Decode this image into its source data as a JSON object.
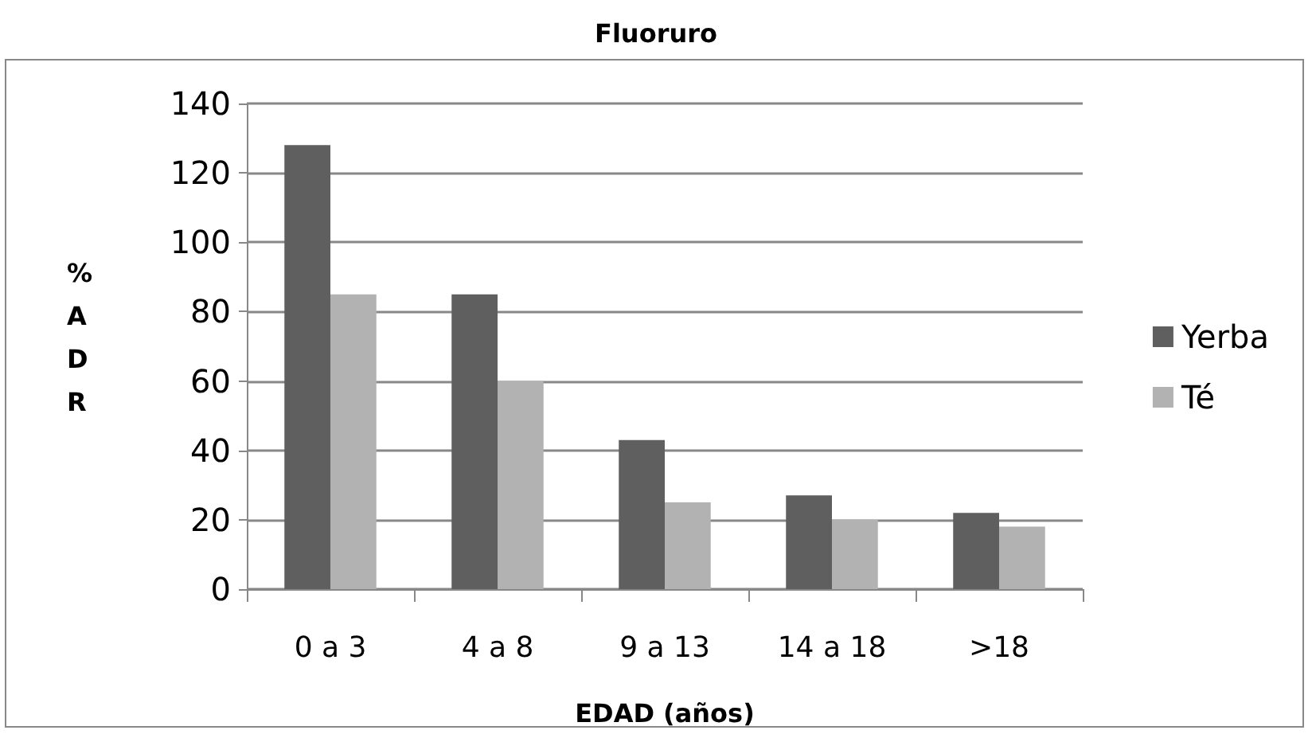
{
  "chart_data": {
    "type": "bar",
    "title": "Fluoruro",
    "xlabel": "EDAD (años)",
    "ylabel": "%ADR",
    "categories": [
      "0 a 3",
      "4 a 8",
      "9 a 13",
      "14 a 18",
      ">18"
    ],
    "series": [
      {
        "name": "Yerba",
        "color": "#5f5f5f",
        "values": [
          128,
          85,
          43,
          27,
          22
        ]
      },
      {
        "name": "Té",
        "color": "#b2b2b2",
        "values": [
          85,
          60,
          25,
          20,
          18
        ]
      }
    ],
    "ylim": [
      0,
      140
    ],
    "yticks": [
      0,
      20,
      40,
      60,
      80,
      100,
      120,
      140
    ],
    "grid": "y",
    "legend": "right"
  }
}
